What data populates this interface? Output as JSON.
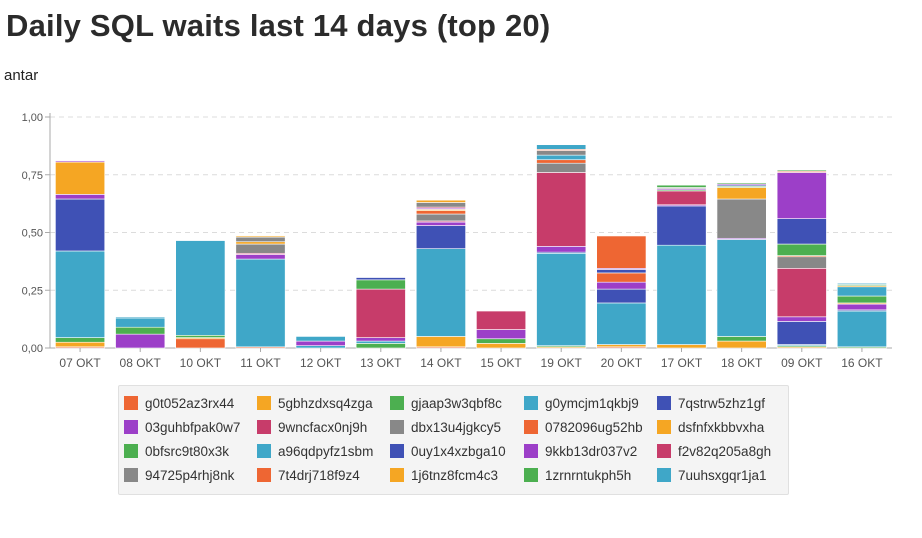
{
  "header": {
    "title": "Daily SQL waits last 14 days (top 20)",
    "subtitle": "antar"
  },
  "chart_data": {
    "type": "bar",
    "stacked": true,
    "title": "Daily SQL waits last 14 days (top 20)",
    "subtitle": "antar",
    "xlabel": "",
    "ylabel": "",
    "ylim": [
      0,
      1
    ],
    "y_ticks": [
      "0,00",
      "0,25",
      "0,50",
      "0,75",
      "1,00"
    ],
    "grid": true,
    "legend_position": "bottom",
    "categories": [
      "07 OKT",
      "08 OKT",
      "10 OKT",
      "11 OKT",
      "12 OKT",
      "13 OKT",
      "14 OKT",
      "15 OKT",
      "19 OKT",
      "20 OKT",
      "17 OKT",
      "18 OKT",
      "09 OKT",
      "16 OKT"
    ],
    "series": [
      {
        "name": "g0t052az3rx44",
        "color": "#ee6633",
        "values": [
          0.005,
          0,
          0.04,
          0.005,
          0,
          0,
          0.005,
          0,
          0,
          0.005,
          0,
          0,
          0,
          0
        ]
      },
      {
        "name": "5gbhzdxsq4zga",
        "color": "#f5a623",
        "values": [
          0.02,
          0,
          0.005,
          0,
          0,
          0,
          0.045,
          0.02,
          0.005,
          0.01,
          0.015,
          0.03,
          0.005,
          0
        ]
      },
      {
        "name": "gjaap3w3qbf8c",
        "color": "#4caf50",
        "values": [
          0.02,
          0,
          0.01,
          0,
          0,
          0.02,
          0,
          0.02,
          0.005,
          0,
          0,
          0.02,
          0.005,
          0.005
        ]
      },
      {
        "name": "g0ymcjm1qkbj9",
        "color": "#3fa7c8",
        "values": [
          0.375,
          0,
          0.41,
          0.38,
          0.01,
          0.01,
          0.38,
          0,
          0.4,
          0.18,
          0.43,
          0.42,
          0.005,
          0.155
        ]
      },
      {
        "name": "7qstrw5zhz1gf",
        "color": "#3f51b5",
        "values": [
          0.225,
          0,
          0,
          0,
          0,
          0,
          0.1,
          0,
          0.005,
          0.06,
          0.17,
          0,
          0.1,
          0.005
        ]
      },
      {
        "name": "03guhbfpak0w7",
        "color": "#9c3fc8",
        "values": [
          0.02,
          0.06,
          0,
          0.02,
          0.02,
          0.015,
          0.015,
          0.04,
          0.025,
          0.03,
          0.005,
          0.005,
          0.02,
          0.025
        ]
      },
      {
        "name": "9wncfacx0nj9h",
        "color": "#c73c6a",
        "values": [
          0,
          0,
          0,
          0.005,
          0,
          0.21,
          0.005,
          0.08,
          0.32,
          0,
          0.06,
          0,
          0.21,
          0
        ]
      },
      {
        "name": "dbx13u4jgkcy5",
        "color": "#888888",
        "values": [
          0,
          0,
          0,
          0.04,
          0,
          0,
          0.03,
          0,
          0.04,
          0,
          0,
          0.17,
          0.05,
          0
        ]
      },
      {
        "name": "0782096ug52hb",
        "color": "#ee6633",
        "values": [
          0,
          0,
          0,
          0,
          0,
          0,
          0.015,
          0,
          0.015,
          0.04,
          0,
          0,
          0.005,
          0
        ]
      },
      {
        "name": "dsfnfxkbbvxha",
        "color": "#f5a623",
        "values": [
          0.14,
          0,
          0,
          0.01,
          0,
          0,
          0.005,
          0,
          0,
          0,
          0,
          0.05,
          0,
          0.005
        ]
      },
      {
        "name": "0bfsrc9t80x3k",
        "color": "#4caf50",
        "values": [
          0,
          0.03,
          0,
          0,
          0,
          0.04,
          0,
          0,
          0,
          0,
          0.005,
          0.005,
          0.05,
          0.03
        ]
      },
      {
        "name": "a96qdpyfz1sbm",
        "color": "#3fa7c8",
        "values": [
          0,
          0.04,
          0,
          0,
          0.02,
          0,
          0,
          0,
          0.02,
          0,
          0,
          0,
          0,
          0.04
        ]
      },
      {
        "name": "0uy1x4xzbga10",
        "color": "#3f51b5",
        "values": [
          0,
          0,
          0,
          0,
          0,
          0.01,
          0,
          0,
          0,
          0.015,
          0,
          0.005,
          0.11,
          0
        ]
      },
      {
        "name": "9kkb13dr037v2",
        "color": "#9c3fc8",
        "values": [
          0.005,
          0,
          0,
          0,
          0,
          0,
          0.005,
          0,
          0,
          0.005,
          0.005,
          0.005,
          0.2,
          0
        ]
      },
      {
        "name": "f2v82q205a8gh",
        "color": "#c73c6a",
        "values": [
          0,
          0,
          0,
          0,
          0,
          0,
          0.005,
          0,
          0,
          0,
          0,
          0,
          0,
          0
        ]
      },
      {
        "name": "94725p4rhj8nk",
        "color": "#888888",
        "values": [
          0,
          0,
          0,
          0.02,
          0,
          0,
          0.02,
          0,
          0.02,
          0,
          0.005,
          0,
          0,
          0
        ]
      },
      {
        "name": "7t4drj718f9z4",
        "color": "#ee6633",
        "values": [
          0,
          0,
          0,
          0,
          0,
          0,
          0,
          0,
          0.005,
          0.14,
          0,
          0,
          0.005,
          0
        ]
      },
      {
        "name": "1j6tnz8fcm4c3",
        "color": "#f5a623",
        "values": [
          0,
          0,
          0,
          0.005,
          0,
          0,
          0.01,
          0,
          0,
          0,
          0,
          0,
          0,
          0.005
        ]
      },
      {
        "name": "1zrnrntukph5h",
        "color": "#4caf50",
        "values": [
          0,
          0,
          0,
          0,
          0,
          0,
          0,
          0,
          0,
          0,
          0.01,
          0.005,
          0.005,
          0.005
        ]
      },
      {
        "name": "7uuhsxgqr1ja1",
        "color": "#3fa7c8",
        "values": [
          0,
          0.005,
          0,
          0,
          0,
          0,
          0,
          0,
          0.02,
          0,
          0,
          0,
          0,
          0.005
        ]
      }
    ]
  }
}
